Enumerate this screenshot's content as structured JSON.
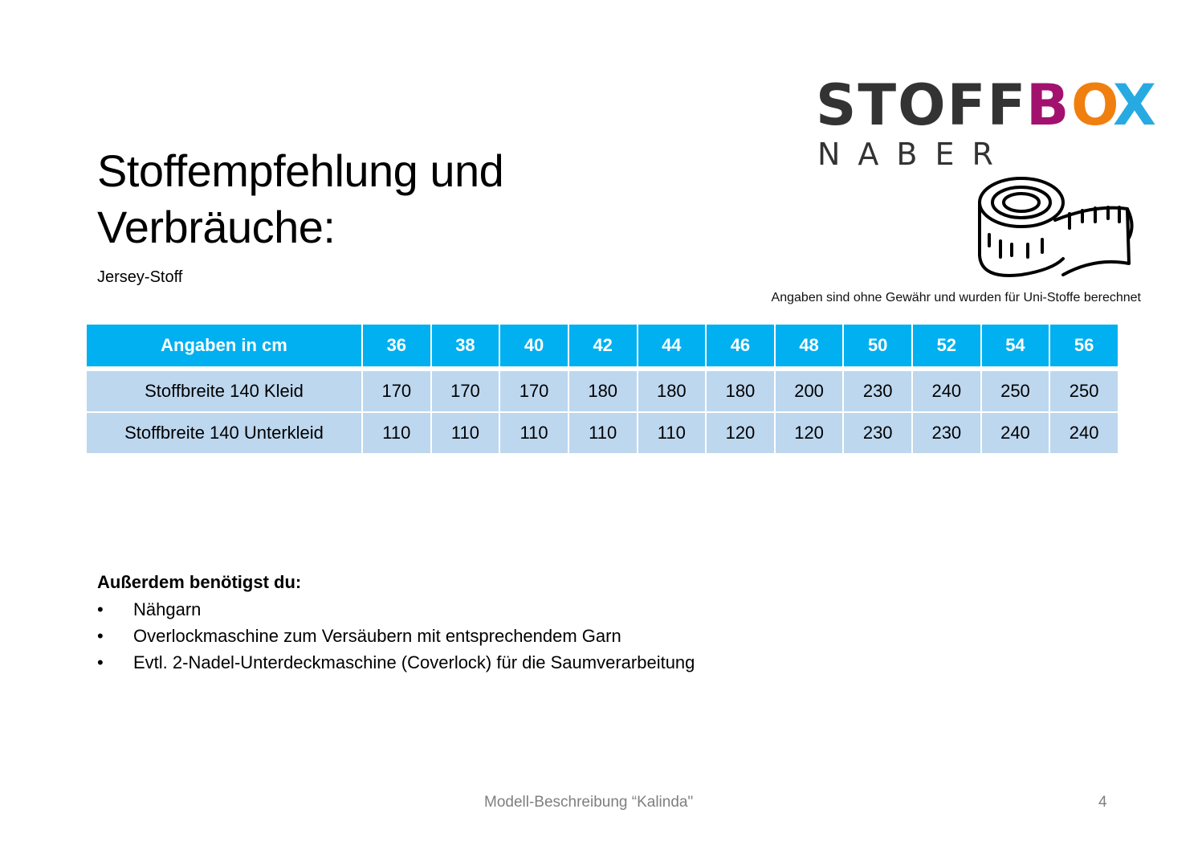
{
  "title_line1": "Stoffempfehlung und",
  "title_line2": "Verbräuche:",
  "subtitle": "Jersey-Stoff",
  "disclaimer": "Angaben sind ohne Gewähr und wurden für Uni-Stoffe berechnet",
  "logo": {
    "text_stoff": "STOFF",
    "text_b": "B",
    "text_o": "O",
    "text_x": "X",
    "text_naber": "NABER",
    "colors": {
      "stoff": "#333333",
      "b": "#a3116e",
      "o": "#f07f0f",
      "x": "#27aae1"
    }
  },
  "tape_icon": "measuring-tape-icon",
  "table": {
    "header": [
      "Angaben in cm",
      "36",
      "38",
      "40",
      "42",
      "44",
      "46",
      "48",
      "50",
      "52",
      "54",
      "56"
    ],
    "rows": [
      [
        "Stoffbreite 140 Kleid",
        "170",
        "170",
        "170",
        "180",
        "180",
        "180",
        "200",
        "230",
        "240",
        "250",
        "250"
      ],
      [
        "Stoffbreite 140 Unterkleid",
        "110",
        "110",
        "110",
        "110",
        "110",
        "120",
        "120",
        "230",
        "230",
        "240",
        "240"
      ]
    ],
    "colors": {
      "header_bg": "#00b0f0",
      "row_bg": "#bdd7ee"
    }
  },
  "extras": {
    "heading": "Außerdem benötigst du:",
    "items": [
      "Nähgarn",
      "Overlockmaschine zum Versäubern mit entsprechendem Garn",
      "Evtl. 2-Nadel-Unterdeckmaschine (Coverlock) für die Saumverarbeitung"
    ]
  },
  "footer": {
    "center": "Modell-Beschreibung “Kalinda\"",
    "page": "4"
  }
}
